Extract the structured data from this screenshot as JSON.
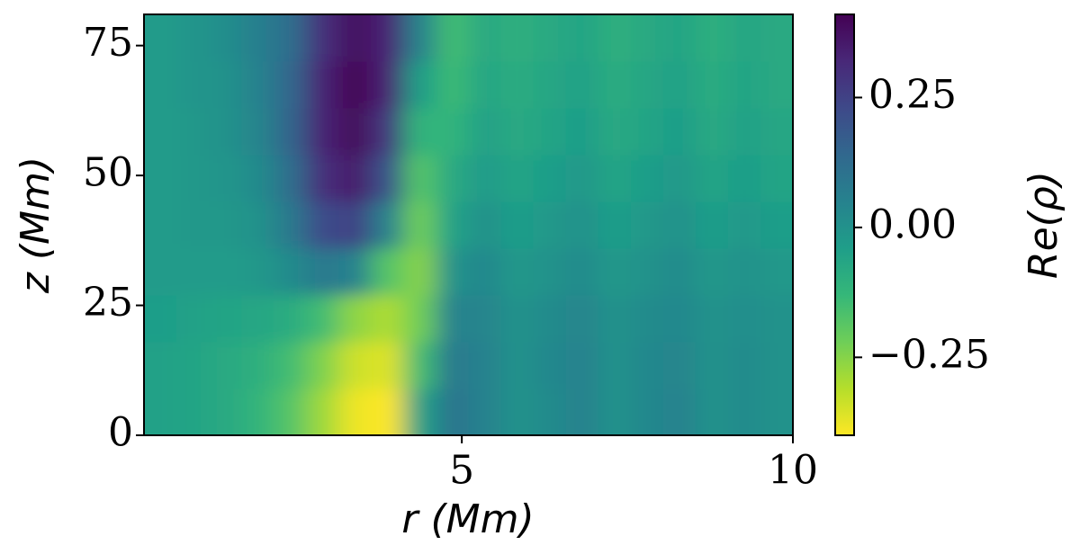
{
  "chart_data": {
    "type": "heatmap",
    "xlabel": "r (Mm)",
    "ylabel": "z (Mm)",
    "colorbar_label": "Re(ρ)",
    "xlim": [
      0.2,
      10
    ],
    "ylim": [
      0,
      81
    ],
    "xticks": [
      5,
      10
    ],
    "yticks": [
      0,
      25,
      50,
      75
    ],
    "clim": [
      -0.4,
      0.41
    ],
    "cticks": [
      {
        "value": 0.25,
        "label": "0.25"
      },
      {
        "value": 0,
        "label": "0.00"
      },
      {
        "value": -0.25,
        "label": "−0.25"
      }
    ],
    "colormap": [
      "#fde725",
      "#b5de2b",
      "#6ece58",
      "#35b779",
      "#1f9e89",
      "#26828e",
      "#31688e",
      "#3e4989",
      "#482878",
      "#440154"
    ],
    "x": [
      0.445,
      0.935,
      1.425,
      1.915,
      2.405,
      2.895,
      3.385,
      3.875,
      4.365,
      4.855,
      5.345,
      5.835,
      6.325,
      6.815,
      7.305,
      7.795,
      8.285,
      8.775,
      9.265,
      9.755
    ],
    "y": [
      4.5,
      13.5,
      22.5,
      31.5,
      40.5,
      49.5,
      58.5,
      67.5,
      76.5
    ],
    "z": [
      [
        -0.05,
        -0.06,
        -0.08,
        -0.12,
        -0.18,
        -0.28,
        -0.38,
        -0.4,
        -0.05,
        0.1,
        0.05,
        0.0,
        0.02,
        0.05,
        0.0,
        0.03,
        0.05,
        0.0,
        0.02,
        0.0
      ],
      [
        -0.05,
        -0.06,
        -0.08,
        -0.1,
        -0.15,
        -0.24,
        -0.34,
        -0.36,
        -0.15,
        0.08,
        0.05,
        0.0,
        0.03,
        0.05,
        0.0,
        0.03,
        0.04,
        0.0,
        0.02,
        0.0
      ],
      [
        -0.04,
        -0.05,
        -0.06,
        -0.07,
        -0.09,
        -0.15,
        -0.26,
        -0.3,
        -0.22,
        0.05,
        0.04,
        0.0,
        0.02,
        0.04,
        0.0,
        0.02,
        0.03,
        0.0,
        0.01,
        0.0
      ],
      [
        -0.03,
        -0.03,
        -0.03,
        -0.02,
        0.02,
        0.08,
        0.05,
        -0.18,
        -0.25,
        0.0,
        0.03,
        -0.02,
        0.0,
        0.02,
        -0.02,
        0.0,
        0.02,
        -0.02,
        0.0,
        -0.02
      ],
      [
        -0.03,
        -0.02,
        -0.02,
        0.0,
        0.08,
        0.22,
        0.25,
        0.05,
        -0.22,
        -0.05,
        0.0,
        -0.04,
        -0.02,
        0.0,
        -0.04,
        -0.02,
        0.0,
        -0.04,
        -0.02,
        -0.04
      ],
      [
        -0.03,
        -0.02,
        -0.01,
        0.02,
        0.12,
        0.3,
        0.35,
        0.2,
        -0.18,
        -0.08,
        -0.03,
        -0.06,
        -0.04,
        -0.02,
        -0.06,
        -0.04,
        -0.02,
        -0.06,
        -0.04,
        -0.06
      ],
      [
        -0.03,
        -0.02,
        0.0,
        0.04,
        0.15,
        0.33,
        0.39,
        0.28,
        -0.12,
        -0.12,
        -0.05,
        -0.08,
        -0.06,
        -0.04,
        -0.08,
        -0.06,
        -0.04,
        -0.08,
        -0.05,
        -0.07
      ],
      [
        -0.03,
        -0.01,
        0.0,
        0.05,
        0.14,
        0.33,
        0.41,
        0.33,
        -0.04,
        -0.14,
        -0.07,
        -0.09,
        -0.07,
        -0.05,
        -0.09,
        -0.07,
        -0.05,
        -0.09,
        -0.06,
        -0.08
      ],
      [
        -0.03,
        -0.01,
        0.01,
        0.06,
        0.12,
        0.3,
        0.38,
        0.33,
        0.05,
        -0.15,
        -0.08,
        -0.1,
        -0.08,
        -0.06,
        -0.1,
        -0.08,
        -0.06,
        -0.1,
        -0.07,
        -0.08
      ]
    ]
  }
}
